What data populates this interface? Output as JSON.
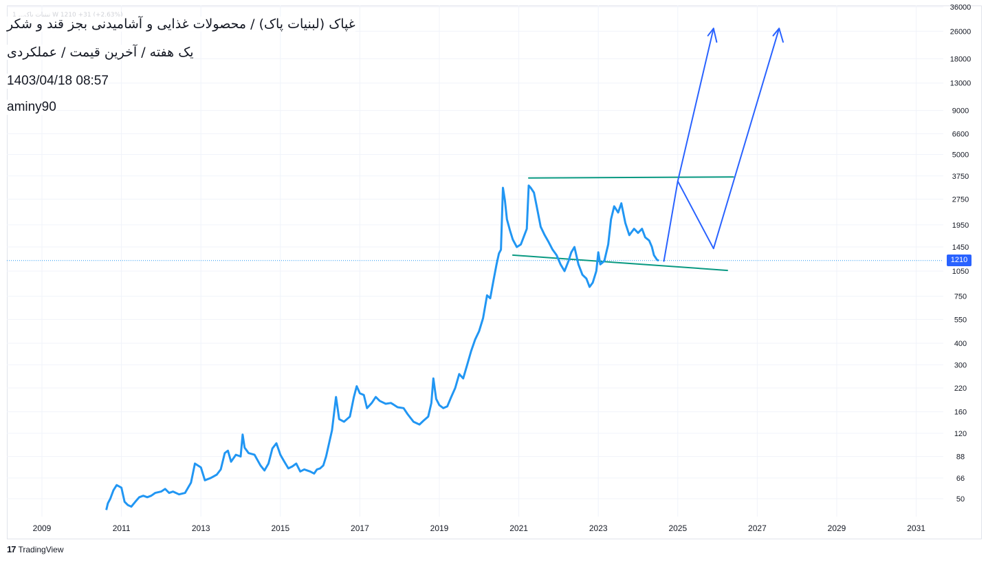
{
  "header": {
    "title": "غپاک (لبنیات پاک) / محصولات غذایی و آشامیدنی بجز قند و شکر",
    "subtitle": "یک هفته / آخرین قیمت / عملکردی",
    "datetime": "1403/04/18 08:57",
    "author": "aminy90",
    "legend_faded": "1  ...نبنیات پاک  W  1210  +31 (+2.63%)"
  },
  "brand": {
    "logo": "17",
    "name": "TradingView"
  },
  "colors": {
    "price_line": "#2196f3",
    "trend_lines": "#089981",
    "projection": "#2962ff",
    "last_price_badge": "#2962ff",
    "grid": "#f0f3fa",
    "axis_text": "#131722"
  },
  "chart_data": {
    "type": "line",
    "title": "غپاک (لبنیات پاک) / محصولات غذایی و آشامیدنی بجز قند و شکر",
    "xlabel": "",
    "ylabel": "",
    "y_scale": "log",
    "grid": true,
    "x_ticks": [
      "2009",
      "2011",
      "2013",
      "2015",
      "2017",
      "2019",
      "2021",
      "2023",
      "2025",
      "2027",
      "2029",
      "2031"
    ],
    "y_ticks": [
      50,
      66,
      88,
      120,
      160,
      220,
      300,
      400,
      550,
      750,
      1050,
      1450,
      1950,
      2750,
      3750,
      5000,
      6600,
      9000,
      13000,
      18000,
      26000,
      36000
    ],
    "last_price": 1210,
    "series": [
      {
        "style": "line",
        "points": [
          [
            "2010.62",
            43
          ],
          [
            "2010.66",
            47
          ],
          [
            "2010.72",
            50
          ],
          [
            "2010.80",
            56
          ],
          [
            "2010.88",
            60
          ],
          [
            "2011.00",
            58
          ],
          [
            "2011.08",
            48
          ],
          [
            "2011.16",
            46
          ],
          [
            "2011.25",
            45
          ],
          [
            "2011.35",
            48
          ],
          [
            "2011.45",
            51
          ],
          [
            "2011.55",
            52
          ],
          [
            "2011.65",
            51
          ],
          [
            "2011.75",
            52
          ],
          [
            "2011.85",
            54
          ],
          [
            "2012.00",
            55
          ],
          [
            "2012.10",
            57
          ],
          [
            "2012.20",
            54
          ],
          [
            "2012.30",
            55
          ],
          [
            "2012.45",
            53
          ],
          [
            "2012.60",
            54
          ],
          [
            "2012.75",
            62
          ],
          [
            "2012.85",
            80
          ],
          [
            "2013.00",
            76
          ],
          [
            "2013.10",
            64
          ],
          [
            "2013.25",
            66
          ],
          [
            "2013.40",
            69
          ],
          [
            "2013.50",
            74
          ],
          [
            "2013.60",
            92
          ],
          [
            "2013.68",
            95
          ],
          [
            "2013.76",
            82
          ],
          [
            "2013.88",
            90
          ],
          [
            "2014.00",
            88
          ],
          [
            "2014.05",
            118
          ],
          [
            "2014.10",
            99
          ],
          [
            "2014.20",
            92
          ],
          [
            "2014.35",
            90
          ],
          [
            "2014.50",
            78
          ],
          [
            "2014.60",
            73
          ],
          [
            "2014.70",
            80
          ],
          [
            "2014.80",
            98
          ],
          [
            "2014.90",
            105
          ],
          [
            "2015.00",
            90
          ],
          [
            "2015.10",
            82
          ],
          [
            "2015.20",
            75
          ],
          [
            "2015.30",
            77
          ],
          [
            "2015.40",
            80
          ],
          [
            "2015.50",
            72
          ],
          [
            "2015.60",
            74
          ],
          [
            "2015.75",
            72
          ],
          [
            "2015.85",
            70
          ],
          [
            "2015.92",
            74
          ],
          [
            "2016.00",
            75
          ],
          [
            "2016.08",
            78
          ],
          [
            "2016.15",
            88
          ],
          [
            "2016.30",
            125
          ],
          [
            "2016.40",
            195
          ],
          [
            "2016.48",
            145
          ],
          [
            "2016.60",
            140
          ],
          [
            "2016.75",
            150
          ],
          [
            "2016.85",
            195
          ],
          [
            "2016.92",
            225
          ],
          [
            "2017.00",
            205
          ],
          [
            "2017.10",
            200
          ],
          [
            "2017.18",
            168
          ],
          [
            "2017.30",
            180
          ],
          [
            "2017.40",
            195
          ],
          [
            "2017.50",
            185
          ],
          [
            "2017.65",
            178
          ],
          [
            "2017.78",
            180
          ],
          [
            "2017.85",
            176
          ],
          [
            "2017.95",
            170
          ],
          [
            "2018.10",
            168
          ],
          [
            "2018.20",
            155
          ],
          [
            "2018.35",
            140
          ],
          [
            "2018.50",
            135
          ],
          [
            "2018.60",
            142
          ],
          [
            "2018.72",
            150
          ],
          [
            "2018.80",
            180
          ],
          [
            "2018.85",
            250
          ],
          [
            "2018.92",
            190
          ],
          [
            "2019.00",
            175
          ],
          [
            "2019.10",
            168
          ],
          [
            "2019.20",
            172
          ],
          [
            "2019.30",
            195
          ],
          [
            "2019.40",
            220
          ],
          [
            "2019.50",
            265
          ],
          [
            "2019.60",
            250
          ],
          [
            "2019.70",
            300
          ],
          [
            "2019.80",
            360
          ],
          [
            "2019.90",
            420
          ],
          [
            "2020.00",
            470
          ],
          [
            "2020.10",
            560
          ],
          [
            "2020.20",
            760
          ],
          [
            "2020.28",
            730
          ],
          [
            "2020.36",
            920
          ],
          [
            "2020.44",
            1150
          ],
          [
            "2020.50",
            1330
          ],
          [
            "2020.55",
            1400
          ],
          [
            "2020.60",
            3200
          ],
          [
            "2020.65",
            2700
          ],
          [
            "2020.70",
            2100
          ],
          [
            "2020.78",
            1800
          ],
          [
            "2020.85",
            1600
          ],
          [
            "2020.95",
            1450
          ],
          [
            "2021.05",
            1500
          ],
          [
            "2021.12",
            1650
          ],
          [
            "2021.20",
            1850
          ],
          [
            "2021.25",
            3300
          ],
          [
            "2021.30",
            3200
          ],
          [
            "2021.38",
            3000
          ],
          [
            "2021.45",
            2500
          ],
          [
            "2021.55",
            1900
          ],
          [
            "2021.65",
            1700
          ],
          [
            "2021.75",
            1550
          ],
          [
            "2021.85",
            1400
          ],
          [
            "2021.95",
            1300
          ],
          [
            "2022.05",
            1150
          ],
          [
            "2022.15",
            1050
          ],
          [
            "2022.25",
            1200
          ],
          [
            "2022.32",
            1350
          ],
          [
            "2022.40",
            1450
          ],
          [
            "2022.50",
            1150
          ],
          [
            "2022.60",
            1000
          ],
          [
            "2022.70",
            950
          ],
          [
            "2022.78",
            850
          ],
          [
            "2022.86",
            900
          ],
          [
            "2022.95",
            1050
          ],
          [
            "2023.00",
            1350
          ],
          [
            "2023.05",
            1150
          ],
          [
            "2023.15",
            1200
          ],
          [
            "2023.25",
            1500
          ],
          [
            "2023.32",
            2100
          ],
          [
            "2023.40",
            2500
          ],
          [
            "2023.50",
            2300
          ],
          [
            "2023.58",
            2600
          ],
          [
            "2023.68",
            2000
          ],
          [
            "2023.78",
            1700
          ],
          [
            "2023.90",
            1850
          ],
          [
            "2024.00",
            1750
          ],
          [
            "2024.10",
            1850
          ],
          [
            "2024.18",
            1650
          ],
          [
            "2024.28",
            1580
          ],
          [
            "2024.35",
            1450
          ],
          [
            "2024.40",
            1300
          ],
          [
            "2024.48",
            1220
          ],
          [
            "2024.52",
            1210
          ]
        ]
      }
    ],
    "annotations": [
      {
        "kind": "trend-line",
        "points": [
          [
            "2021.25",
            3650
          ],
          [
            "2026.40",
            3700
          ]
        ]
      },
      {
        "kind": "trend-line",
        "points": [
          [
            "2020.85",
            1300
          ],
          [
            "2026.25",
            1060
          ]
        ]
      },
      {
        "kind": "projection-path",
        "points": [
          [
            "2024.65",
            1200
          ],
          [
            "2025.00",
            3500
          ],
          [
            "2025.90",
            1420
          ],
          [
            "2027.55",
            27000
          ]
        ]
      },
      {
        "kind": "projection-path",
        "points": [
          [
            "2025.00",
            3500
          ],
          [
            "2025.90",
            27000
          ]
        ]
      },
      {
        "kind": "arrow-head",
        "points": [
          [
            "2025.76",
            24500
          ],
          [
            "2025.90",
            27000
          ],
          [
            "2025.98",
            22500
          ]
        ]
      },
      {
        "kind": "arrow-head",
        "points": [
          [
            "2027.40",
            24500
          ],
          [
            "2027.55",
            27000
          ],
          [
            "2027.65",
            22500
          ]
        ]
      }
    ]
  }
}
